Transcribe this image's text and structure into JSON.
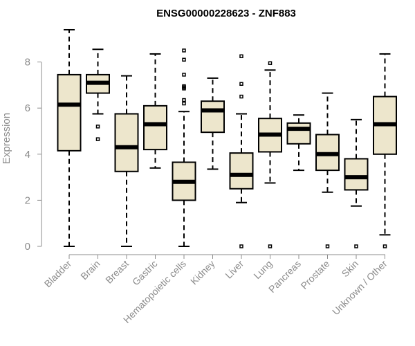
{
  "chart_data": {
    "type": "boxplot",
    "title": "ENSG00000228623 - ZNF883",
    "ylabel": "Expression",
    "xlabel": "",
    "ylim": [
      0,
      9.5
    ],
    "yticks": [
      0,
      2,
      4,
      6,
      8
    ],
    "grid": false,
    "box_fill": "#ede6cc",
    "categories": [
      "Bladder",
      "Brain",
      "Breast",
      "Gastric",
      "Hematopoietic cells",
      "Kidney",
      "Liver",
      "Lung",
      "Pancreas",
      "Prostate",
      "Skin",
      "Unknown / Other"
    ],
    "boxes": [
      {
        "whisker_low": 0.0,
        "q1": 4.15,
        "median": 6.15,
        "q3": 7.45,
        "whisker_high": 9.4,
        "outliers": []
      },
      {
        "whisker_low": 5.75,
        "q1": 6.65,
        "median": 7.1,
        "q3": 7.45,
        "whisker_high": 8.55,
        "outliers": [
          5.2,
          4.65
        ]
      },
      {
        "whisker_low": 0.0,
        "q1": 3.25,
        "median": 4.3,
        "q3": 5.75,
        "whisker_high": 7.4,
        "outliers": []
      },
      {
        "whisker_low": 3.4,
        "q1": 4.2,
        "median": 5.3,
        "q3": 6.1,
        "whisker_high": 8.35,
        "outliers": []
      },
      {
        "whisker_low": 0.0,
        "q1": 2.0,
        "median": 2.8,
        "q3": 3.65,
        "whisker_high": 5.85,
        "outliers": [
          8.5,
          8.1,
          7.45,
          6.95,
          6.9,
          6.85,
          6.35,
          6.2
        ]
      },
      {
        "whisker_low": 3.35,
        "q1": 4.95,
        "median": 5.9,
        "q3": 6.3,
        "whisker_high": 7.3,
        "outliers": []
      },
      {
        "whisker_low": 1.9,
        "q1": 2.5,
        "median": 3.1,
        "q3": 4.05,
        "whisker_high": 5.75,
        "outliers": [
          8.25,
          7.05,
          6.5,
          0.0
        ]
      },
      {
        "whisker_low": 2.75,
        "q1": 4.1,
        "median": 4.85,
        "q3": 5.55,
        "whisker_high": 7.65,
        "outliers": [
          7.95,
          0.0
        ]
      },
      {
        "whisker_low": 3.3,
        "q1": 4.45,
        "median": 5.1,
        "q3": 5.35,
        "whisker_high": 5.7,
        "outliers": []
      },
      {
        "whisker_low": 2.35,
        "q1": 3.3,
        "median": 4.0,
        "q3": 4.85,
        "whisker_high": 6.65,
        "outliers": [
          0.0
        ]
      },
      {
        "whisker_low": 1.75,
        "q1": 2.45,
        "median": 3.0,
        "q3": 3.8,
        "whisker_high": 5.5,
        "outliers": [
          0.0
        ]
      },
      {
        "whisker_low": 0.5,
        "q1": 4.0,
        "median": 5.3,
        "q3": 6.5,
        "whisker_high": 8.35,
        "outliers": [
          0.0
        ]
      }
    ]
  }
}
